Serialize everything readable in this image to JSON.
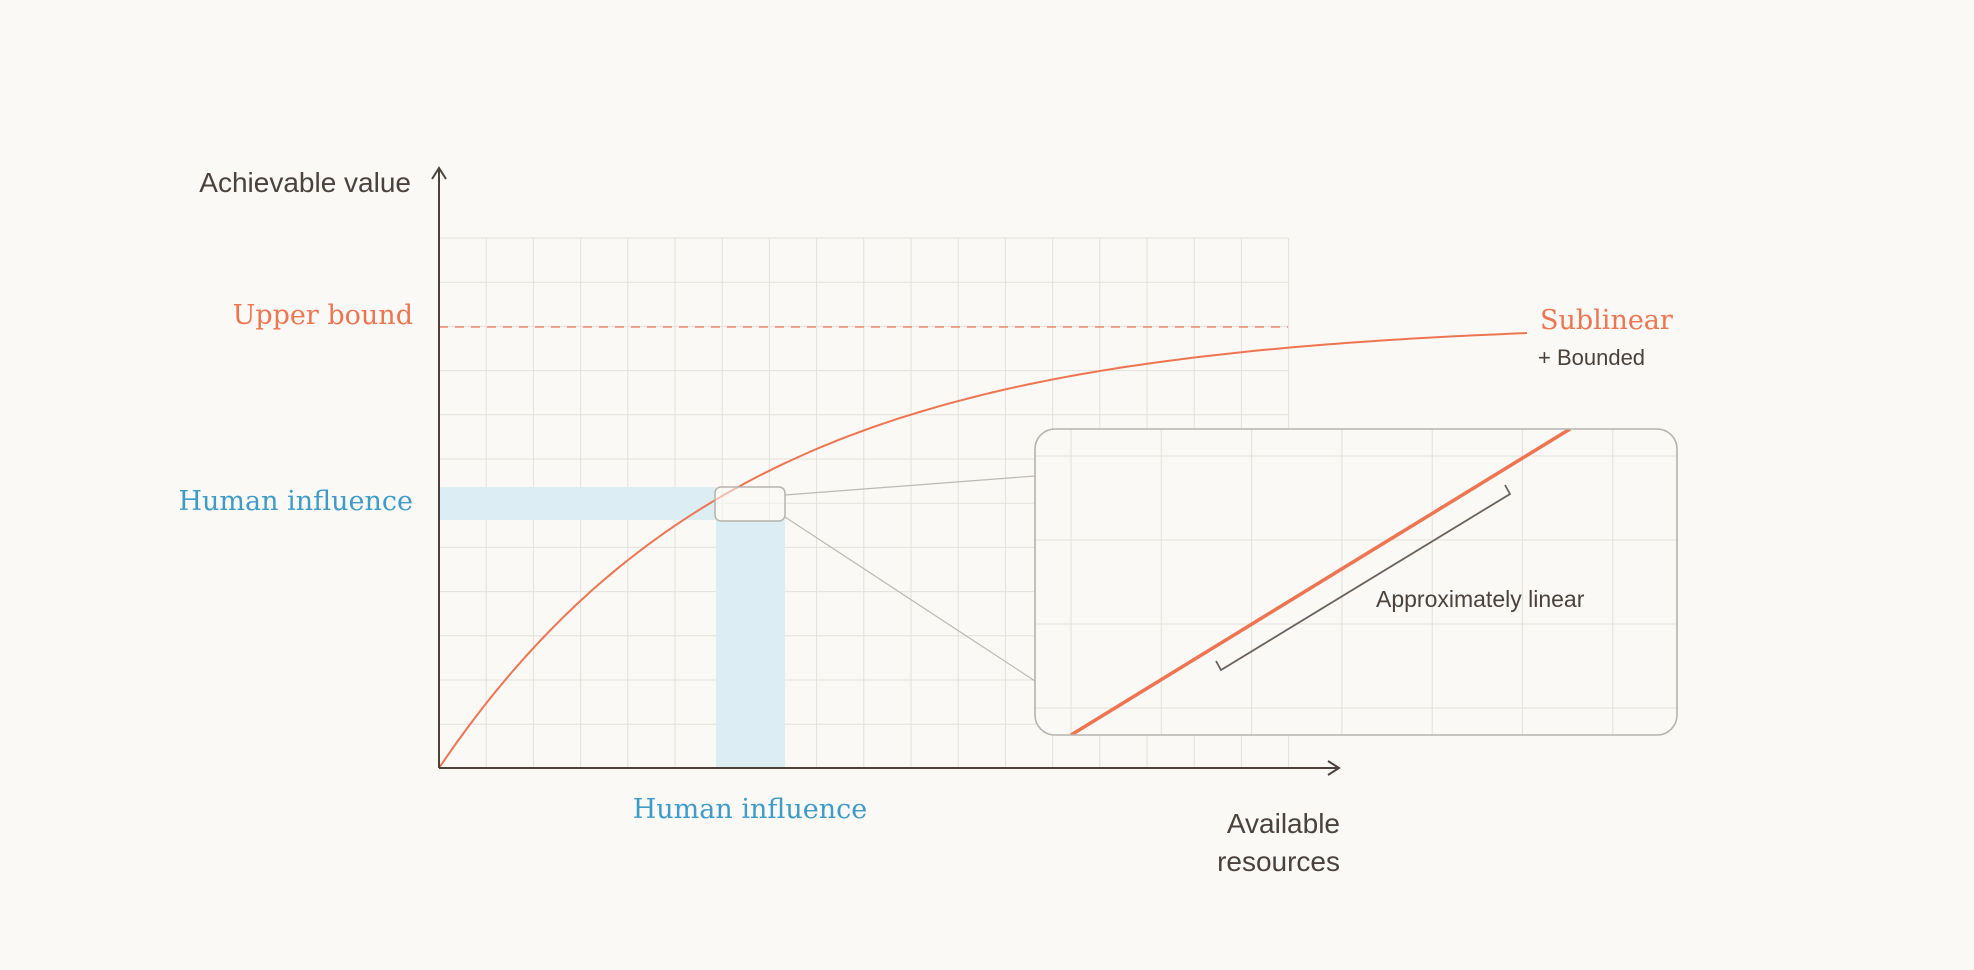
{
  "diagram": {
    "y_axis_label": "Achievable value",
    "x_axis_label_line1": "Available",
    "x_axis_label_line2": "resources",
    "upper_bound_label": "Upper bound",
    "human_influence_y_label": "Human influence",
    "human_influence_x_label": "Human influence",
    "curve_label": "Sublinear",
    "curve_sublabel": "+ Bounded",
    "inset_annotation": "Approximately linear"
  },
  "colors": {
    "background": "#faf9f5",
    "curve": "#ee7551",
    "highlight": "#dceef4",
    "highlight_text": "#3f9bc7",
    "grid": "#e3e1dc",
    "axis": "#4a423b",
    "inset_border": "#b7b3ad"
  }
}
